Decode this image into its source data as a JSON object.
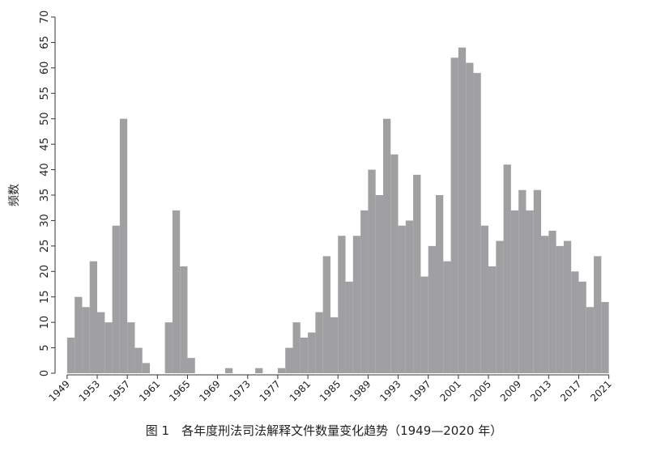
{
  "chart_data": {
    "type": "histogram",
    "ylabel": "频数",
    "caption": "图 1　各年度刑法司法解释文件数量变化趋势（1949—2020 年）",
    "bins": [
      1949,
      1950,
      1951,
      1952,
      1953,
      1954,
      1955,
      1956,
      1957,
      1958,
      1959,
      1960,
      1961,
      1962,
      1963,
      1964,
      1965,
      1966,
      1967,
      1968,
      1969,
      1970,
      1971,
      1972,
      1973,
      1974,
      1975,
      1976,
      1977,
      1978,
      1979,
      1980,
      1981,
      1982,
      1983,
      1984,
      1985,
      1986,
      1987,
      1988,
      1989,
      1990,
      1991,
      1992,
      1993,
      1994,
      1995,
      1996,
      1997,
      1998,
      1999,
      2000,
      2001,
      2002,
      2003,
      2004,
      2005,
      2006,
      2007,
      2008,
      2009,
      2010,
      2011,
      2012,
      2013,
      2014,
      2015,
      2016,
      2017,
      2018,
      2019,
      2020,
      2021
    ],
    "counts": [
      7,
      15,
      13,
      22,
      12,
      10,
      29,
      50,
      10,
      5,
      2,
      0,
      0,
      10,
      32,
      21,
      3,
      0,
      0,
      0,
      0,
      1,
      0,
      0,
      0,
      1,
      0,
      0,
      1,
      5,
      10,
      7,
      8,
      12,
      23,
      11,
      27,
      18,
      27,
      32,
      40,
      35,
      50,
      43,
      29,
      30,
      39,
      19,
      25,
      35,
      22,
      62,
      64,
      61,
      59,
      29,
      21,
      26,
      41,
      32,
      36,
      32,
      36,
      27,
      28,
      25,
      26,
      20,
      18,
      13,
      23,
      14
    ],
    "color": "#a0a0a2",
    "xlim": [
      1947.4,
      2021.9
    ],
    "xticks": [
      1949,
      1953,
      1957,
      1961,
      1965,
      1969,
      1973,
      1977,
      1981,
      1985,
      1989,
      1993,
      1997,
      2001,
      2005,
      2009,
      2013,
      2017,
      2021
    ],
    "ylim": [
      0,
      70
    ],
    "yticks": [
      0,
      5,
      10,
      15,
      20,
      25,
      30,
      35,
      40,
      45,
      50,
      55,
      60,
      65,
      70
    ]
  }
}
